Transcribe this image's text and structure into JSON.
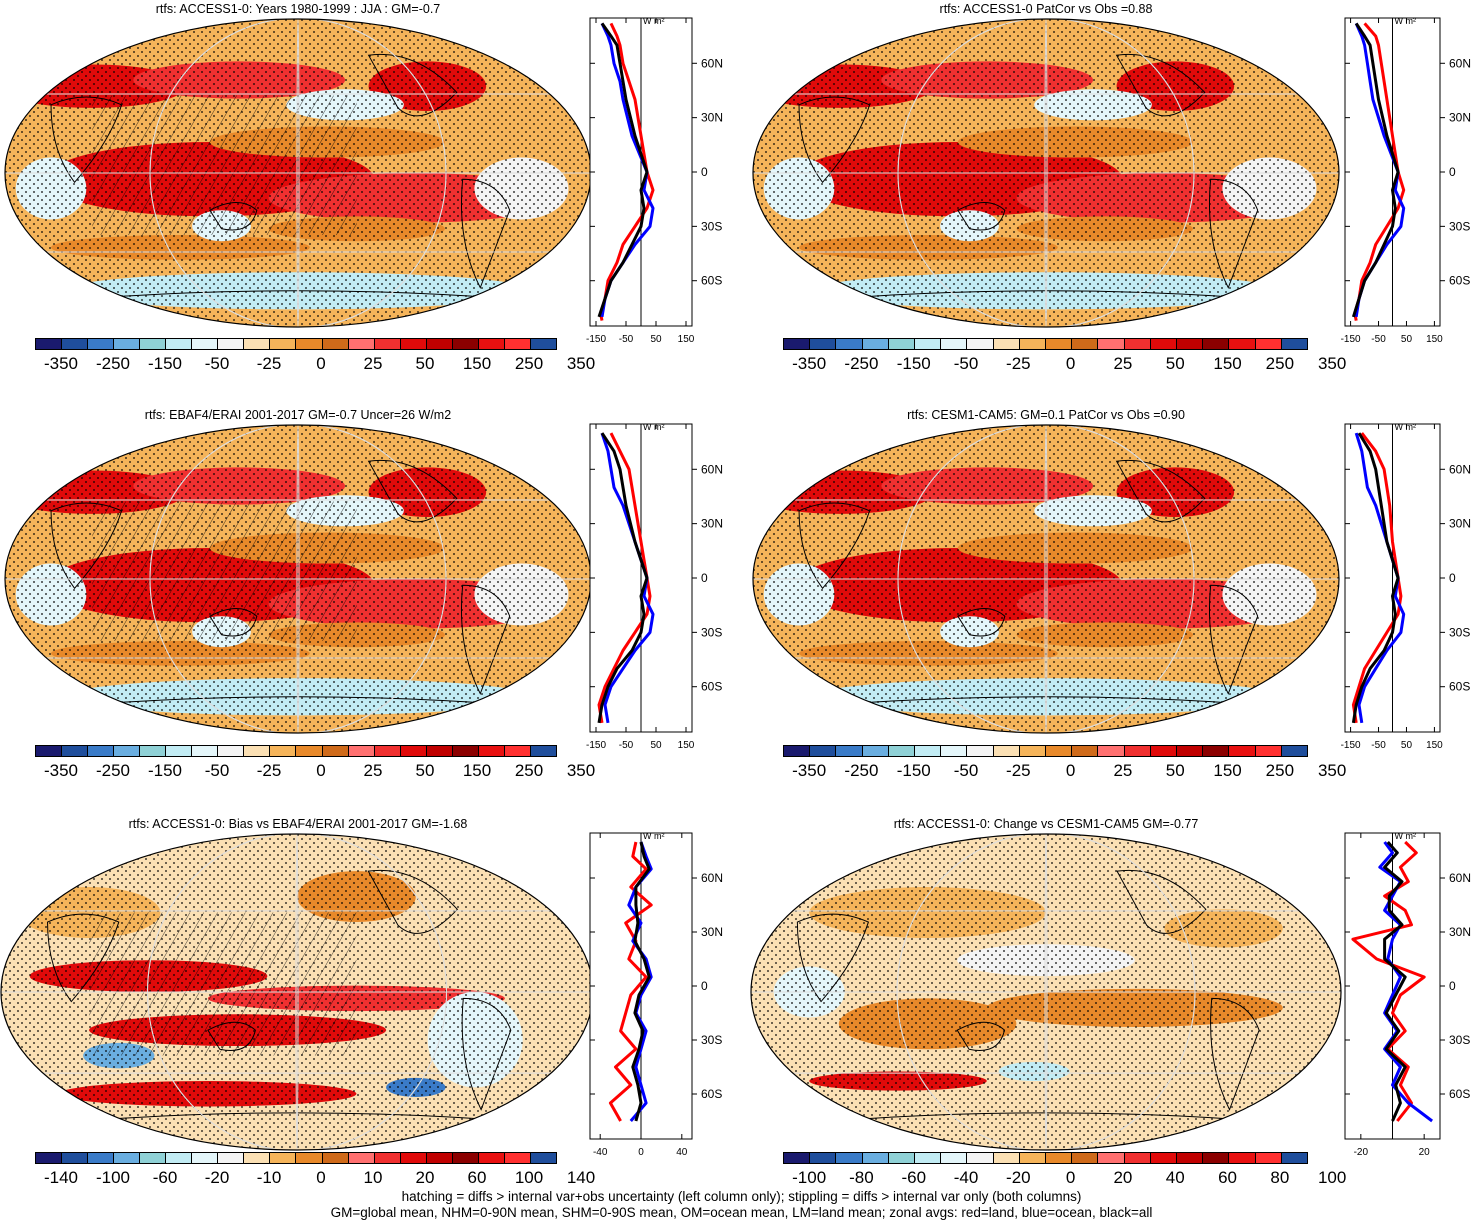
{
  "palettes": {
    "bins": [
      "#1a1a6e",
      "#1f4e9c",
      "#3a7bc8",
      "#6aaee0",
      "#8fd1d6",
      "#c2ecf4",
      "#e4f6fa",
      "#f4f4f4",
      "#fbe0b4",
      "#f5b45a",
      "#e8892a",
      "#cf6a1a",
      "#ff7070",
      "#f03030",
      "#e00a0a",
      "#c00000",
      "#8b0000",
      "#e81010",
      "#ff3030",
      "#1f4e9c"
    ],
    "line_colors": {
      "land": "#ff0000",
      "ocean": "#0000ff",
      "all": "#000000"
    },
    "stipple": "#000000",
    "hatch": "#000000"
  },
  "zonal_unit": "W m²",
  "lat_labels": [
    "60N",
    "30N",
    "0",
    "30S",
    "60S"
  ],
  "panels": [
    {
      "id": "p1",
      "title": "rtfs: ACCESS1-0: Years 1980-1999 : JJA : GM=-0.7",
      "colorbar_labels": [
        "-350",
        "-250",
        "-150",
        "-50",
        "-25",
        "0",
        "25",
        "50",
        "150",
        "250",
        "350"
      ],
      "zonal_ticks": [
        "-150",
        "-50",
        "50",
        "150"
      ],
      "field": "mean",
      "hatched": true,
      "chart_data": {
        "type": "line",
        "xlabel": "W m²",
        "xticks": [
          -150,
          -50,
          50,
          150
        ],
        "xlim": [
          -170,
          170
        ],
        "ylim": [
          -85,
          85
        ],
        "series": [
          {
            "name": "land",
            "color": "#ff0000",
            "x": [
              -100,
              -80,
              -70,
              -60,
              -40,
              -20,
              0,
              20,
              40,
              20,
              -20,
              -60,
              -80,
              -110,
              -120,
              -135,
              -130
            ],
            "y": [
              82,
              75,
              70,
              60,
              50,
              40,
              20,
              0,
              -10,
              -20,
              -30,
              -40,
              -50,
              -60,
              -70,
              -78,
              -82
            ]
          },
          {
            "name": "ocean",
            "color": "#0000ff",
            "x": [
              -130,
              -110,
              -100,
              -90,
              -70,
              -60,
              -30,
              20,
              10,
              40,
              30,
              -20,
              -60,
              -100,
              -120,
              -130
            ],
            "y": [
              82,
              75,
              70,
              60,
              50,
              40,
              20,
              0,
              -10,
              -20,
              -30,
              -40,
              -50,
              -60,
              -70,
              -80
            ]
          },
          {
            "name": "all",
            "color": "#000000",
            "x": [
              -130,
              -100,
              -80,
              -70,
              -60,
              -50,
              -20,
              20,
              0,
              10,
              0,
              -30,
              -60,
              -100,
              -120,
              -140
            ],
            "y": [
              82,
              75,
              70,
              60,
              50,
              40,
              20,
              0,
              -10,
              -20,
              -30,
              -40,
              -50,
              -60,
              -70,
              -80
            ]
          }
        ]
      }
    },
    {
      "id": "p2",
      "title": "rtfs: ACCESS1-0 PatCor vs Obs =0.88",
      "colorbar_labels": [
        "-350",
        "-250",
        "-150",
        "-50",
        "-25",
        "0",
        "25",
        "50",
        "150",
        "250",
        "350"
      ],
      "zonal_ticks": [
        "-150",
        "-50",
        "50",
        "150"
      ],
      "field": "mean",
      "hatched": false,
      "chart_data": {
        "type": "line",
        "xlabel": "W m²",
        "xticks": [
          -150,
          -50,
          50,
          150
        ],
        "xlim": [
          -170,
          170
        ],
        "ylim": [
          -85,
          85
        ],
        "series": [
          {
            "name": "land",
            "color": "#ff0000",
            "x": [
              -100,
              -60,
              -50,
              -40,
              -30,
              -20,
              0,
              20,
              40,
              20,
              -20,
              -60,
              -80,
              -110,
              -120,
              -135,
              -130
            ],
            "y": [
              82,
              75,
              70,
              60,
              50,
              40,
              20,
              0,
              -10,
              -20,
              -30,
              -40,
              -50,
              -60,
              -70,
              -78,
              -82
            ]
          },
          {
            "name": "ocean",
            "color": "#0000ff",
            "x": [
              -130,
              -110,
              -100,
              -90,
              -80,
              -70,
              -30,
              20,
              10,
              40,
              30,
              -20,
              -60,
              -100,
              -120,
              -130
            ],
            "y": [
              82,
              75,
              70,
              60,
              50,
              40,
              20,
              0,
              -10,
              -20,
              -30,
              -40,
              -50,
              -60,
              -70,
              -80
            ]
          },
          {
            "name": "all",
            "color": "#000000",
            "x": [
              -130,
              -100,
              -80,
              -70,
              -60,
              -50,
              -20,
              20,
              0,
              10,
              0,
              -30,
              -60,
              -100,
              -120,
              -140
            ],
            "y": [
              82,
              75,
              70,
              60,
              50,
              40,
              20,
              0,
              -10,
              -20,
              -30,
              -40,
              -50,
              -60,
              -70,
              -80
            ]
          }
        ]
      }
    },
    {
      "id": "p3",
      "title": "rtfs: EBAF4/ERAI 2001-2017 GM=-0.7 Uncer=26 W/m2",
      "colorbar_labels": [
        "-350",
        "-250",
        "-150",
        "-50",
        "-25",
        "0",
        "25",
        "50",
        "150",
        "250",
        "350"
      ],
      "zonal_ticks": [
        "-150",
        "-50",
        "50",
        "150"
      ],
      "field": "mean",
      "hatched": true,
      "chart_data": {
        "type": "line",
        "xlabel": "W m²",
        "xticks": [
          -150,
          -50,
          50,
          150
        ],
        "xlim": [
          -170,
          170
        ],
        "ylim": [
          -85,
          85
        ],
        "series": [
          {
            "name": "land",
            "color": "#ff0000",
            "x": [
              -100,
              -70,
              -40,
              -30,
              -20,
              0,
              20,
              30,
              20,
              -20,
              -60,
              -90,
              -120,
              -140,
              -130
            ],
            "y": [
              80,
              70,
              60,
              50,
              40,
              20,
              0,
              -10,
              -20,
              -30,
              -40,
              -50,
              -60,
              -70,
              -80
            ]
          },
          {
            "name": "ocean",
            "color": "#0000ff",
            "x": [
              -130,
              -110,
              -100,
              -90,
              -60,
              -20,
              20,
              10,
              40,
              30,
              -20,
              -60,
              -100,
              -120,
              -110
            ],
            "y": [
              80,
              70,
              60,
              50,
              40,
              20,
              0,
              -10,
              -20,
              -30,
              -40,
              -50,
              -60,
              -70,
              -80
            ]
          },
          {
            "name": "all",
            "color": "#000000",
            "x": [
              -130,
              -90,
              -70,
              -60,
              -50,
              -20,
              20,
              0,
              10,
              0,
              -30,
              -80,
              -110,
              -130,
              -140
            ],
            "y": [
              80,
              70,
              60,
              50,
              40,
              20,
              0,
              -10,
              -20,
              -30,
              -40,
              -50,
              -60,
              -70,
              -80
            ]
          }
        ]
      }
    },
    {
      "id": "p4",
      "title": "rtfs: CESM1-CAM5: GM=0.1 PatCor vs Obs =0.90",
      "colorbar_labels": [
        "-350",
        "-250",
        "-150",
        "-50",
        "-25",
        "0",
        "25",
        "50",
        "150",
        "250",
        "350"
      ],
      "zonal_ticks": [
        "-150",
        "-50",
        "50",
        "150"
      ],
      "field": "mean",
      "hatched": false,
      "chart_data": {
        "type": "line",
        "xlabel": "W m²",
        "xticks": [
          -150,
          -50,
          50,
          150
        ],
        "xlim": [
          -170,
          170
        ],
        "ylim": [
          -85,
          85
        ],
        "series": [
          {
            "name": "land",
            "color": "#ff0000",
            "x": [
              -110,
              -60,
              -30,
              -20,
              -10,
              0,
              20,
              30,
              20,
              -20,
              -60,
              -100,
              -120,
              -140,
              -130
            ],
            "y": [
              80,
              70,
              60,
              50,
              40,
              20,
              0,
              -10,
              -20,
              -30,
              -40,
              -50,
              -60,
              -70,
              -80
            ]
          },
          {
            "name": "ocean",
            "color": "#0000ff",
            "x": [
              -130,
              -110,
              -100,
              -90,
              -60,
              -20,
              20,
              10,
              40,
              30,
              -20,
              -60,
              -100,
              -120,
              -110
            ],
            "y": [
              80,
              70,
              60,
              50,
              40,
              20,
              0,
              -10,
              -20,
              -30,
              -40,
              -50,
              -60,
              -70,
              -80
            ]
          },
          {
            "name": "all",
            "color": "#000000",
            "x": [
              -120,
              -80,
              -60,
              -50,
              -40,
              -20,
              20,
              0,
              10,
              0,
              -30,
              -80,
              -110,
              -130,
              -140
            ],
            "y": [
              80,
              70,
              60,
              50,
              40,
              20,
              0,
              -10,
              -20,
              -30,
              -40,
              -50,
              -60,
              -70,
              -80
            ]
          }
        ]
      }
    },
    {
      "id": "p5",
      "title": "rtfs: ACCESS1-0: Bias vs EBAF4/ERAI 2001-2017 GM=-1.68",
      "colorbar_labels": [
        "-140",
        "-100",
        "-60",
        "-20",
        "-10",
        "0",
        "10",
        "20",
        "60",
        "100",
        "140"
      ],
      "zonal_ticks": [
        "-40",
        "0",
        "40"
      ],
      "field": "bias",
      "hatched": true,
      "chart_data": {
        "type": "line",
        "xlabel": "W m²",
        "xticks": [
          -40,
          0,
          40
        ],
        "xlim": [
          -50,
          50
        ],
        "ylim": [
          -85,
          85
        ],
        "series": [
          {
            "name": "land",
            "color": "#ff0000",
            "x": [
              -5,
              -8,
              5,
              -10,
              10,
              -15,
              -5,
              -12,
              5,
              -10,
              -15,
              -20,
              -5,
              -25,
              -10,
              -30,
              -20
            ],
            "y": [
              80,
              72,
              65,
              55,
              45,
              35,
              25,
              15,
              5,
              -5,
              -15,
              -25,
              -35,
              -45,
              -55,
              -65,
              -75
            ]
          },
          {
            "name": "ocean",
            "color": "#0000ff",
            "x": [
              0,
              5,
              10,
              -5,
              -12,
              0,
              -8,
              5,
              10,
              0,
              -5,
              5,
              0,
              -5,
              0,
              5,
              -10
            ],
            "y": [
              80,
              72,
              65,
              55,
              45,
              35,
              25,
              15,
              5,
              -5,
              -15,
              -25,
              -35,
              -45,
              -55,
              -65,
              -75
            ]
          },
          {
            "name": "all",
            "color": "#000000",
            "x": [
              0,
              3,
              8,
              -5,
              -5,
              -3,
              -6,
              3,
              8,
              -2,
              -6,
              2,
              -2,
              -8,
              -3,
              0,
              -5
            ],
            "y": [
              80,
              72,
              65,
              55,
              45,
              35,
              25,
              15,
              5,
              -5,
              -15,
              -25,
              -35,
              -45,
              -55,
              -65,
              -75
            ]
          }
        ]
      }
    },
    {
      "id": "p6",
      "title": "rtfs: ACCESS1-0: Change vs CESM1-CAM5 GM=-0.77",
      "colorbar_labels": [
        "-100",
        "-80",
        "-60",
        "-40",
        "-20",
        "0",
        "20",
        "40",
        "60",
        "80",
        "100"
      ],
      "zonal_ticks": [
        "-20",
        "20"
      ],
      "field": "change",
      "hatched": false,
      "chart_data": {
        "type": "line",
        "xlabel": "W m²",
        "xticks": [
          -20,
          20
        ],
        "xlim": [
          -30,
          30
        ],
        "ylim": [
          -85,
          85
        ],
        "series": [
          {
            "name": "land",
            "color": "#ff0000",
            "x": [
              8,
              15,
              5,
              10,
              -5,
              8,
              12,
              -25,
              -10,
              20,
              5,
              0,
              8,
              -3,
              10,
              5,
              12,
              3
            ],
            "y": [
              80,
              74,
              66,
              58,
              50,
              42,
              34,
              26,
              15,
              5,
              -5,
              -15,
              -25,
              -35,
              -45,
              -55,
              -65,
              -75
            ]
          },
          {
            "name": "ocean",
            "color": "#0000ff",
            "x": [
              -5,
              0,
              -8,
              5,
              0,
              -5,
              5,
              0,
              -3,
              5,
              0,
              -5,
              3,
              -5,
              5,
              0,
              10,
              25
            ],
            "y": [
              80,
              74,
              66,
              58,
              50,
              42,
              34,
              26,
              15,
              5,
              -5,
              -15,
              -25,
              -35,
              -45,
              -55,
              -65,
              -75
            ]
          },
          {
            "name": "all",
            "color": "#000000",
            "x": [
              -3,
              3,
              -5,
              6,
              -2,
              -2,
              6,
              -5,
              -5,
              8,
              2,
              -4,
              4,
              -4,
              8,
              2,
              5,
              0
            ],
            "y": [
              80,
              74,
              66,
              58,
              50,
              42,
              34,
              26,
              15,
              5,
              -5,
              -15,
              -25,
              -35,
              -45,
              -55,
              -65,
              -75
            ]
          }
        ]
      }
    }
  ],
  "footer": {
    "line1": "hatching = diffs > internal var+obs uncertainty (left column only); stippling = diffs > internal var only (both columns)",
    "line2": "GM=global mean, NHM=0-90N mean, SHM=0-90S mean, OM=ocean mean, LM=land mean; zonal avgs: red=land, blue=ocean, black=all"
  }
}
